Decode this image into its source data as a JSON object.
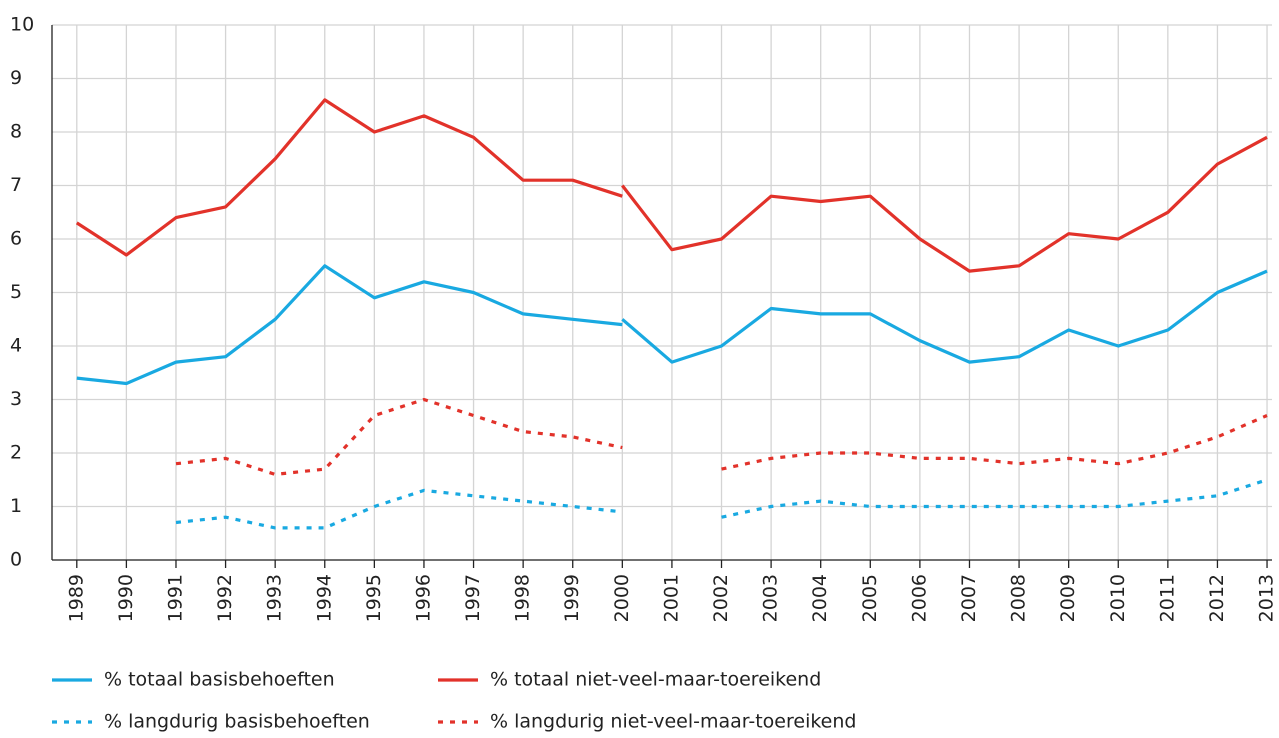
{
  "chart_data": {
    "type": "line",
    "xlim": [
      1988.5,
      2013.1
    ],
    "xticks": [
      1989,
      1990,
      1991,
      1992,
      1993,
      1994,
      1995,
      1996,
      1997,
      1998,
      1999,
      2000,
      2001,
      2002,
      2003,
      2004,
      2005,
      2006,
      2007,
      2008,
      2009,
      2010,
      2011,
      2012,
      2013
    ],
    "ylim": [
      0,
      10
    ],
    "yticks": [
      0,
      1,
      2,
      3,
      4,
      5,
      6,
      7,
      8,
      9,
      10
    ],
    "grid": true,
    "series": [
      {
        "name": "% totaal basisbehoeften",
        "color": "#19a9e1",
        "dash": "solid",
        "x": [
          1989,
          1990,
          1991,
          1992,
          1993,
          1994,
          1995,
          1996,
          1997,
          1998,
          1999,
          2000,
          null,
          2000,
          2001,
          2002,
          2003,
          2004,
          2005,
          2006,
          2007,
          2008,
          2009,
          2010,
          2011,
          2012,
          2013
        ],
        "values": [
          3.4,
          3.3,
          3.7,
          3.8,
          4.5,
          5.5,
          4.9,
          5.2,
          5.0,
          4.6,
          4.5,
          4.4,
          null,
          4.5,
          3.7,
          4.0,
          4.7,
          4.6,
          4.6,
          4.1,
          3.7,
          3.8,
          4.3,
          4.0,
          4.3,
          5.0,
          5.4
        ]
      },
      {
        "name": "% totaal niet-veel-maar-toereikend",
        "color": "#e2322a",
        "dash": "solid",
        "x": [
          1989,
          1990,
          1991,
          1992,
          1993,
          1994,
          1995,
          1996,
          1997,
          1998,
          1999,
          2000,
          null,
          2000,
          2001,
          2002,
          2003,
          2004,
          2005,
          2006,
          2007,
          2008,
          2009,
          2010,
          2011,
          2012,
          2013
        ],
        "values": [
          6.3,
          5.7,
          6.4,
          6.6,
          7.5,
          8.6,
          8.0,
          8.3,
          7.9,
          7.1,
          7.1,
          6.8,
          null,
          7.0,
          5.8,
          6.0,
          6.8,
          6.7,
          6.8,
          6.0,
          5.4,
          5.5,
          6.1,
          6.0,
          6.5,
          7.4,
          7.9
        ]
      },
      {
        "name": "% langdurig basisbehoeften",
        "color": "#19a9e1",
        "dash": "dotted",
        "x": [
          1991,
          1992,
          1993,
          1994,
          1995,
          1996,
          1997,
          1998,
          1999,
          2000,
          null,
          2002,
          2003,
          2004,
          2005,
          2006,
          2007,
          2008,
          2009,
          2010,
          2011,
          2012,
          2013
        ],
        "values": [
          0.7,
          0.8,
          0.6,
          0.6,
          1.0,
          1.3,
          1.2,
          1.1,
          1.0,
          0.9,
          null,
          0.8,
          1.0,
          1.1,
          1.0,
          1.0,
          1.0,
          1.0,
          1.0,
          1.0,
          1.1,
          1.2,
          1.5
        ]
      },
      {
        "name": "% langdurig niet-veel-maar-toereikend",
        "color": "#e2322a",
        "dash": "dotted",
        "x": [
          1991,
          1992,
          1993,
          1994,
          1995,
          1996,
          1997,
          1998,
          1999,
          2000,
          null,
          2002,
          2003,
          2004,
          2005,
          2006,
          2007,
          2008,
          2009,
          2010,
          2011,
          2012,
          2013
        ],
        "values": [
          1.8,
          1.9,
          1.6,
          1.7,
          2.7,
          3.0,
          2.7,
          2.4,
          2.3,
          2.1,
          null,
          1.7,
          1.9,
          2.0,
          2.0,
          1.9,
          1.9,
          1.8,
          1.9,
          1.8,
          2.0,
          2.3,
          2.7
        ]
      }
    ]
  }
}
